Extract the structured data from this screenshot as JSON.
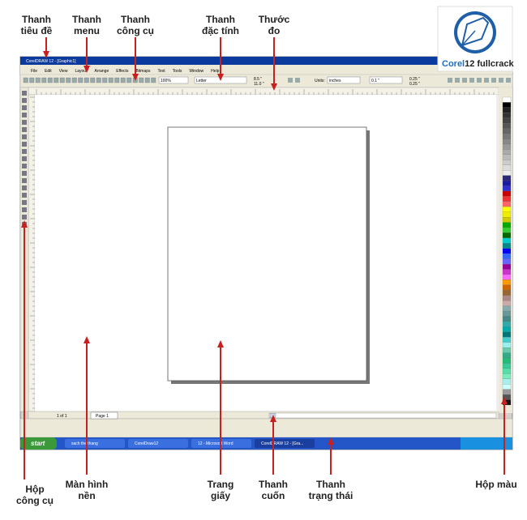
{
  "annotations": [
    {
      "lines": [
        "Thanh",
        "tiêu đề"
      ]
    },
    {
      "lines": [
        "Thanh",
        "menu"
      ]
    },
    {
      "lines": [
        "Thanh",
        "công cụ"
      ]
    },
    {
      "lines": [
        "Thanh",
        "đặc tính"
      ]
    },
    {
      "lines": [
        "Thước",
        "đo"
      ]
    },
    {
      "lines": [
        "Hộp",
        "công cụ"
      ]
    },
    {
      "lines": [
        "Màn hình",
        "nền"
      ]
    },
    {
      "lines": [
        "Trang",
        "giấy"
      ]
    },
    {
      "lines": [
        "Thanh",
        "cuốn"
      ]
    },
    {
      "lines": [
        "Thanh",
        "trạng thái"
      ]
    },
    {
      "lines": [
        "Hộp màu"
      ]
    }
  ],
  "logo": {
    "brand": "Corel",
    "version": "12",
    "suffix": "fullcrack"
  },
  "window": {
    "title": "CorelDRAW 12 - [Graphic1]",
    "menu": [
      "File",
      "Edit",
      "View",
      "Layout",
      "Arrange",
      "Effects",
      "Bitmaps",
      "Text",
      "Tools",
      "Window",
      "Help"
    ],
    "zoom": "100%",
    "paper": "Letter",
    "width": "8.5 \"",
    "height": "11.0 \"",
    "units_label": "Units:",
    "units": "inches",
    "nudge": "0.1 \"",
    "dup_x": "0.25 \"",
    "dup_y": "0.25 \"",
    "page_count": "1 of 1",
    "page_tab": "Page 1"
  },
  "taskbar": {
    "start": "start",
    "items": [
      "sach the thang",
      "CorelDraw12",
      "12 - Microsoft Word",
      "CorelDRAW 12 - [Gra..."
    ]
  }
}
